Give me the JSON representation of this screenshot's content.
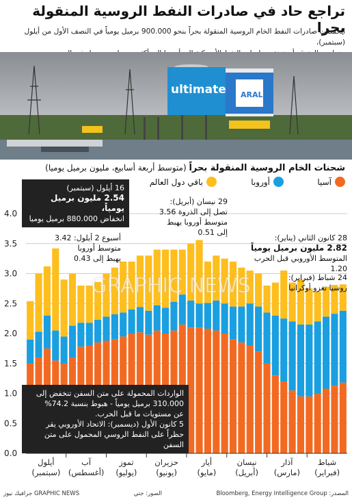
{
  "title": "تراجع حاد في صادرات النفط الروسية المنقولة بحرا",
  "subtitle_line1": "انخفضت صادرات النفط الخام الروسية المنقولة بحراً بنحو 900.000 برميل يومياً في النصف الأول من أيلول (سبتمبر)،",
  "subtitle_line2": "بينما من المتوقع أن ترتفع صادرات النفط الأمريكية إلى أوروبا إلى أكثر من مليون برميل في اليوم",
  "photo": {
    "sign_left": "ultimate",
    "sign_right": "ARAL"
  },
  "chart_title_bold": "شحنات الخام الروسية المنقولة بحراً",
  "chart_title_rest": "(متوسط أربعة أسابيع، مليون برميل يوميا)",
  "legend": {
    "asia": "آسيا",
    "europe": "أوروبا",
    "rest": "باقي دول العالم"
  },
  "colors": {
    "asia": "#f26a22",
    "europe": "#1a9fe0",
    "rest": "#fdbe1e",
    "grid": "#bbbbbb",
    "dark_box": "#222222"
  },
  "annotations": {
    "jan28": {
      "l1": "28 كانون الثاني (يناير):",
      "l2": "2.82 مليون برميل يومياً",
      "l3": "المتوسط الأوروبي قبل الحرب 1.20"
    },
    "feb24": {
      "l1": "24 شباط (فبراير):",
      "l2": "روسيا تغزو أوكرانيا"
    },
    "apr29": {
      "l1": "29 نيسان (أبريل):",
      "l2": "تصل إلى الذروة 3.56",
      "l3": "متوسط أوروبا يهبط",
      "l4": "إلى 0.51"
    },
    "sep2": {
      "l1": "أسبوع 2 أيلول: 3.42",
      "l2": "متوسط أوروبا",
      "l3": "يهبط إلى 0.43"
    },
    "sep16": {
      "l1": "16 أيلول (سبتمبر)",
      "l2": "2.54 مليون برميل يومياً،",
      "l3": "انخفاض 880.000 برميل يوميا"
    },
    "bottom_box": {
      "l1": "الواردات المحمولة على متن السفن تنخفض إلى",
      "l2": "310.000 برميل يومياً - هبوط بنسبة 74.2%",
      "l3": "عن مستويات ما قبل الحرب.",
      "l4": "5 كانون الأول (ديسمبر): الاتحاد الأوروبي يقر",
      "l5": "حظراً على النفط الروسي المحمول على متن السفن"
    }
  },
  "watermark": "GRAPHIC NEWS",
  "footer": {
    "source": "المصدر: Bloomberg, Energy Intelligence Group",
    "photo": "الصور: جتي",
    "credit": "GRAPHIC NEWS جرافيك نيوز"
  },
  "chart_data": {
    "type": "bar",
    "stacked": true,
    "ylim": [
      0,
      4.0
    ],
    "yticks": [
      "0.0",
      "0.5",
      "1.0",
      "1.5",
      "2.0",
      "2.5",
      "3.0",
      "3.5",
      "4.0"
    ],
    "x_labels_note": "bars ordered chronologically left (latest, Sept) to right (earliest, Jan)",
    "month_labels": [
      {
        "line1": "أيلول",
        "line2": "(سبتمبر)"
      },
      {
        "line1": "آب",
        "line2": "(أغسطس)"
      },
      {
        "line1": "تموز",
        "line2": "(يوليو)"
      },
      {
        "line1": "حزيران",
        "line2": "(يونيو)"
      },
      {
        "line1": "أيار",
        "line2": "(مايو)"
      },
      {
        "line1": "نيسان",
        "line2": "(أبريل)"
      },
      {
        "line1": "آذار",
        "line2": "(مارس)"
      },
      {
        "line1": "شباط",
        "line2": "(فبراير)"
      }
    ],
    "series": [
      {
        "name": "آسيا",
        "values": [
          1.5,
          1.6,
          1.75,
          1.55,
          1.5,
          1.6,
          1.78,
          1.8,
          1.85,
          1.88,
          1.9,
          1.95,
          2.0,
          2.02,
          1.98,
          2.05,
          2.0,
          2.05,
          2.15,
          2.1,
          2.1,
          2.08,
          2.05,
          2.0,
          1.9,
          1.85,
          1.8,
          1.7,
          1.5,
          1.3,
          1.2,
          1.05,
          0.95,
          0.95,
          1.0,
          1.08,
          1.13,
          1.18
        ]
      },
      {
        "name": "أوروبا",
        "values": [
          0.4,
          0.43,
          0.55,
          0.5,
          0.45,
          0.53,
          0.4,
          0.38,
          0.38,
          0.4,
          0.42,
          0.4,
          0.4,
          0.42,
          0.4,
          0.42,
          0.43,
          0.48,
          0.5,
          0.45,
          0.4,
          0.43,
          0.5,
          0.5,
          0.55,
          0.6,
          0.7,
          0.75,
          0.85,
          1.0,
          1.05,
          1.15,
          1.2,
          1.2,
          1.2,
          1.2,
          1.2,
          1.2
        ]
      },
      {
        "name": "باقي دول العالم",
        "values": [
          0.64,
          0.97,
          0.82,
          1.37,
          0.95,
          0.87,
          0.62,
          0.62,
          0.63,
          0.72,
          0.78,
          0.85,
          0.8,
          0.86,
          0.92,
          0.93,
          0.97,
          0.87,
          0.75,
          0.95,
          1.06,
          0.69,
          0.75,
          0.75,
          0.75,
          0.65,
          0.55,
          0.55,
          0.45,
          0.55,
          0.8,
          0.65,
          0.75,
          0.6,
          0.5,
          0.5,
          0.48,
          0.44
        ]
      }
    ]
  }
}
